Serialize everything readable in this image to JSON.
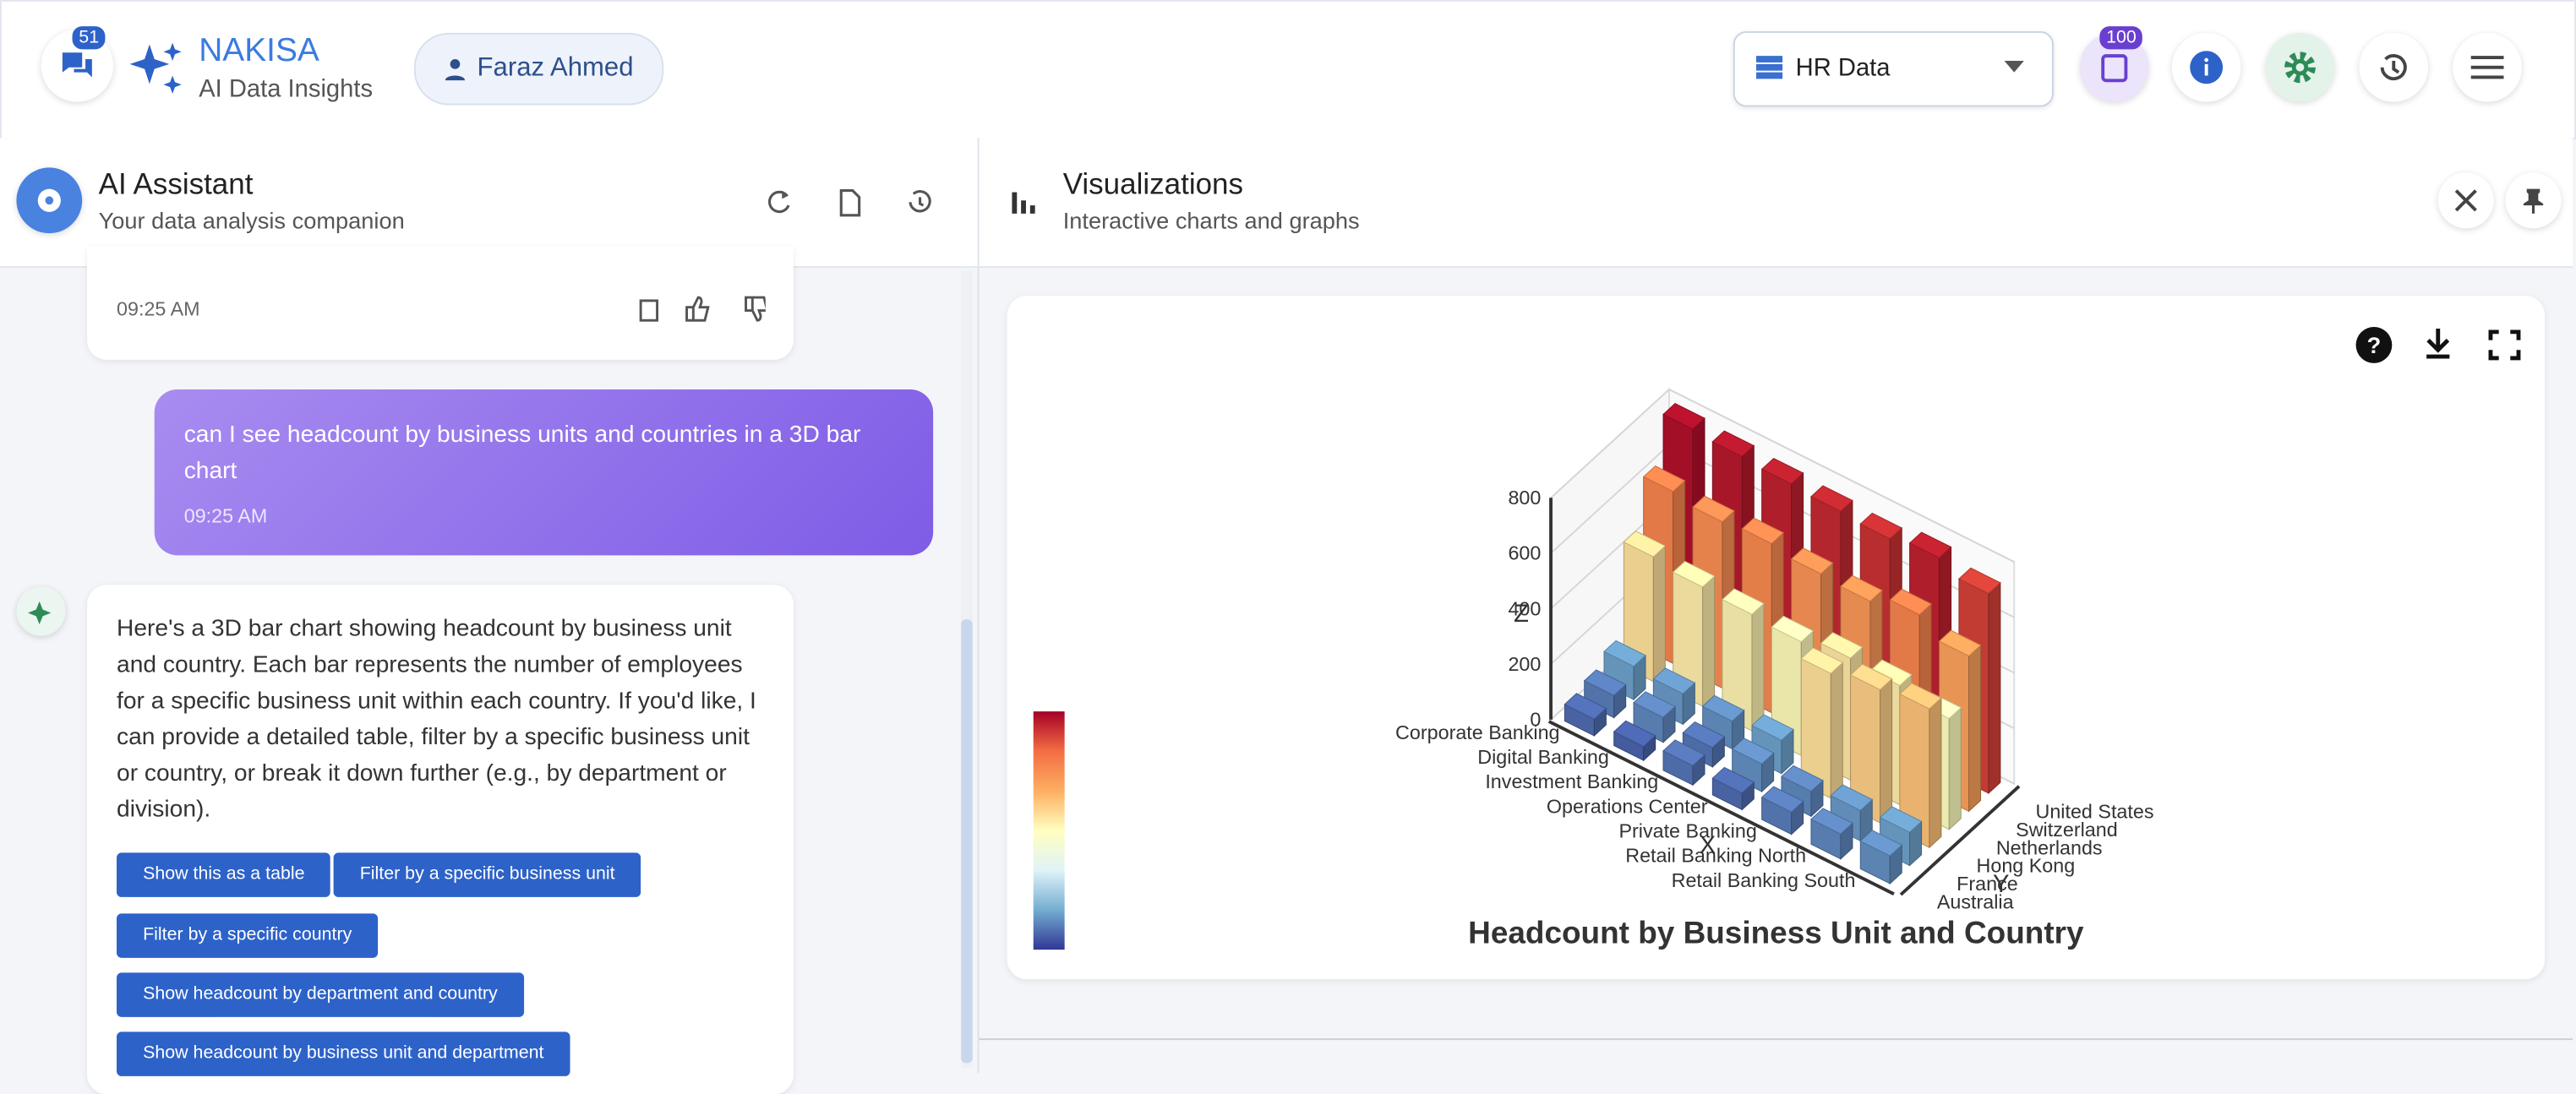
{
  "header": {
    "badge_count": 51,
    "brand": "NAKISA",
    "tagline": "AI Data Insights",
    "user": "Faraz Ahmed",
    "data_source": "HR Data",
    "notification_count": 100
  },
  "assistant_panel": {
    "title": "AI Assistant",
    "subtitle": "Your data analysis companion",
    "messages": [
      {
        "time": "09:25 AM"
      },
      {
        "text": "can I see headcount by business units and countries in a 3D bar chart",
        "time": "09:25 AM"
      },
      {
        "text": "Here's a 3D bar chart showing headcount by business unit and country. Each bar represents the number of employees for a specific business unit within each country. If you'd like, I can provide a detailed table, filter by a specific business unit or country, or break it down further (e.g., by department or division).",
        "suggestions": [
          "Show this as a table",
          "Filter by a specific business unit",
          "Filter by a specific country",
          "Show headcount by department and country",
          "Show headcount by business unit and department"
        ]
      }
    ]
  },
  "visualization_panel": {
    "title": "Visualizations",
    "subtitle": "Interactive charts and graphs"
  },
  "chart_data": {
    "type": "bar3d",
    "title": "Headcount by Business Unit and Country",
    "x_label": "X",
    "y_label": "Y",
    "z_label": "Z",
    "x_categories": [
      "Corporate Banking",
      "Digital Banking",
      "Investment Banking",
      "Operations Center",
      "Private Banking",
      "Retail Banking North",
      "Retail Banking South"
    ],
    "y_categories": [
      "Australia",
      "France",
      "Hong Kong",
      "Netherlands",
      "Switzerland",
      "United States"
    ],
    "values": [
      [
        60,
        50,
        70,
        60,
        80,
        90,
        100
      ],
      [
        80,
        90,
        70,
        100,
        90,
        110,
        120
      ],
      [
        120,
        110,
        100,
        120,
        450,
        480,
        500
      ],
      [
        450,
        430,
        420,
        410,
        440,
        430,
        400
      ],
      [
        620,
        600,
        610,
        590,
        580,
        620,
        560
      ],
      [
        780,
        770,
        760,
        750,
        740,
        760,
        720
      ]
    ],
    "zlim": [
      0,
      800
    ],
    "zticks": [
      0,
      200,
      400,
      600,
      800
    ],
    "grid": true,
    "colorscale": [
      "#313695",
      "#74add1",
      "#e0f3f8",
      "#ffffbf",
      "#fdae61",
      "#f46d43",
      "#a50026"
    ]
  }
}
